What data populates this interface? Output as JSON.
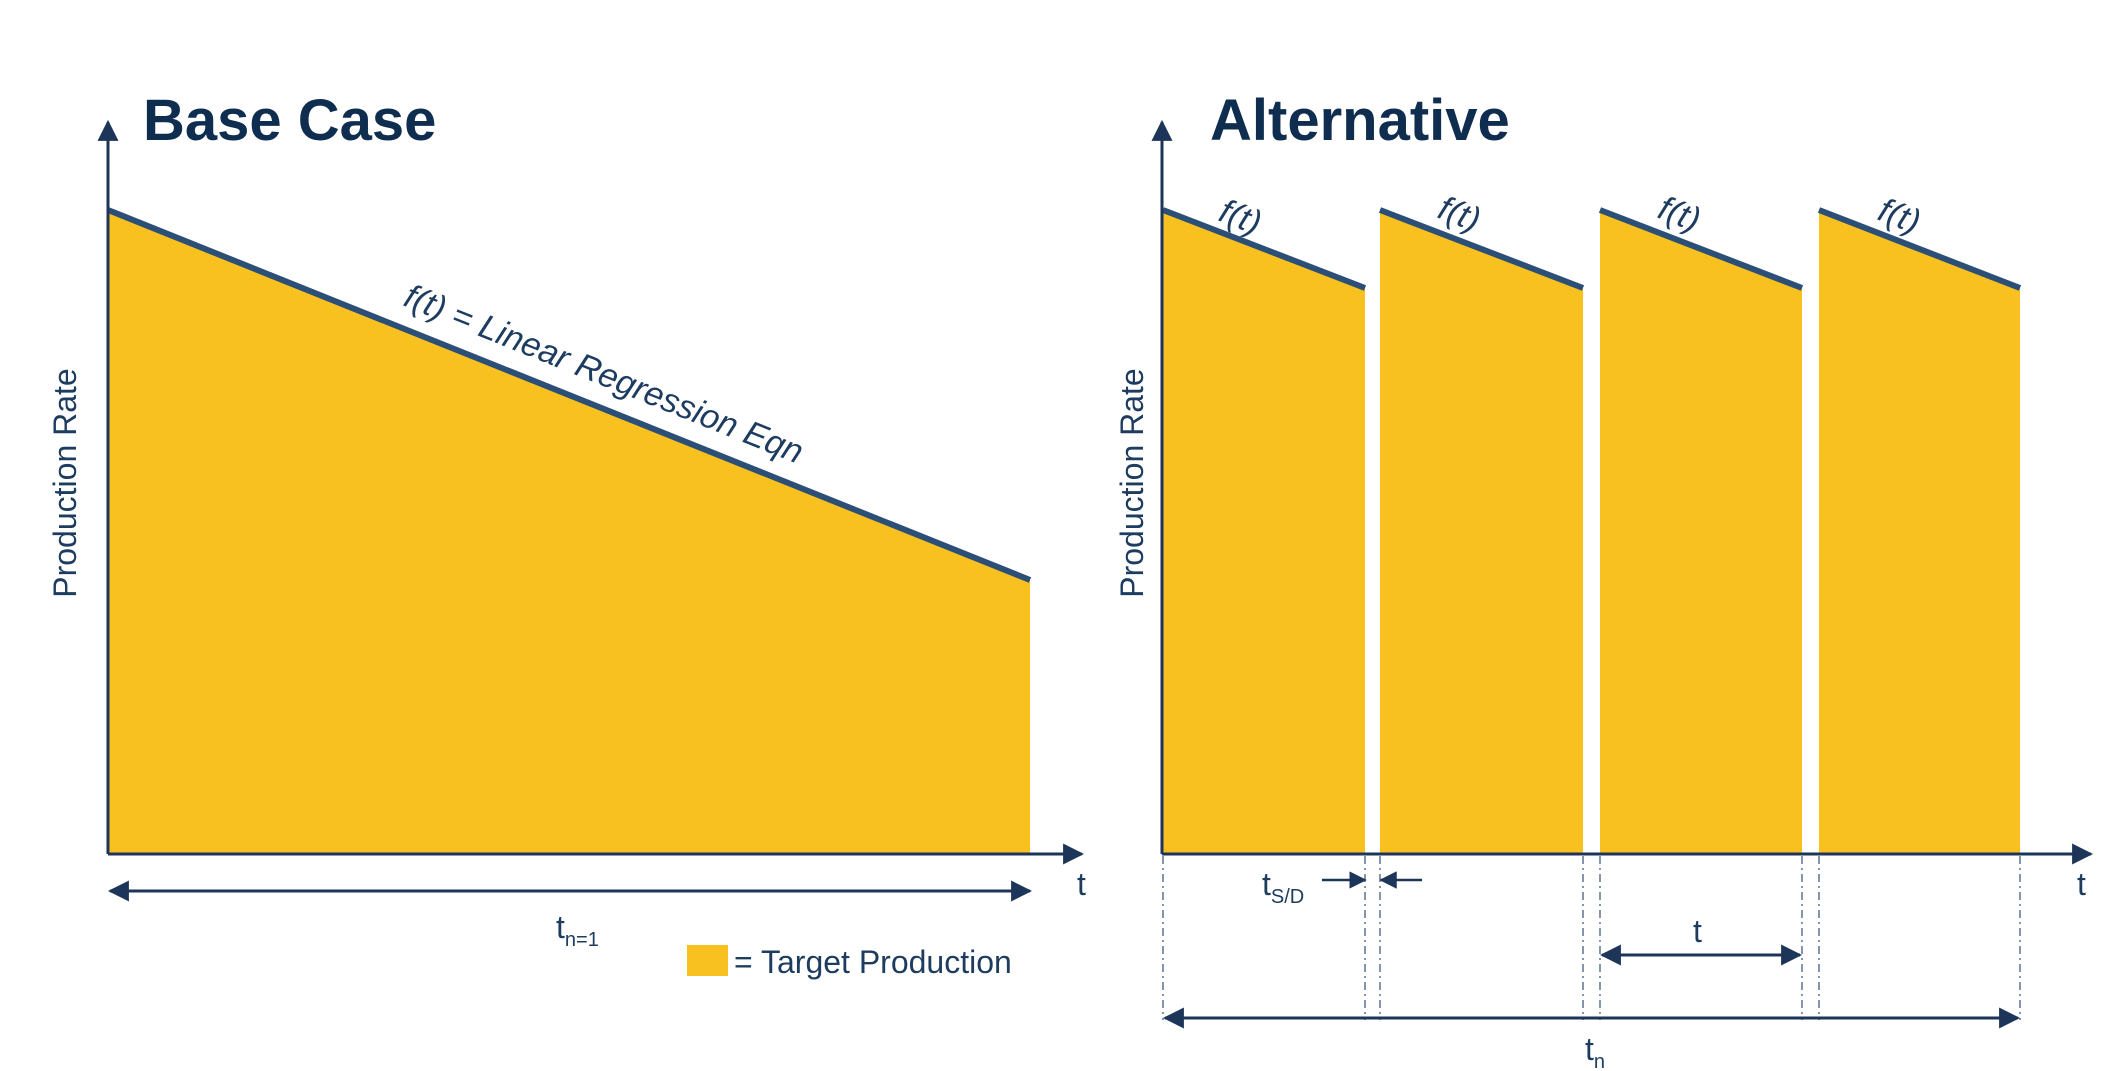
{
  "base_case": {
    "title": "Base Case",
    "y_axis_label": "Production Rate",
    "x_axis_label": "t",
    "curve_label": "f(t) = Linear Regression Eqn",
    "duration_label": {
      "main": "t",
      "subscript": "n=1"
    }
  },
  "alternative": {
    "title": "Alternative",
    "y_axis_label": "Production Rate",
    "x_axis_label": "t",
    "segment_labels": [
      "f(t)",
      "f(t)",
      "f(t)",
      "f(t)"
    ],
    "shutdown_label": {
      "main": "t",
      "subscript": "S/D"
    },
    "interval_label": "t",
    "total_label": {
      "main": "t",
      "subscript": "n"
    }
  },
  "legend": {
    "label": "= Target Production"
  },
  "colors": {
    "fill": "#f9c11f",
    "line": "#2c4f77",
    "axis": "#1c3558",
    "text": "#1d3c5f"
  }
}
